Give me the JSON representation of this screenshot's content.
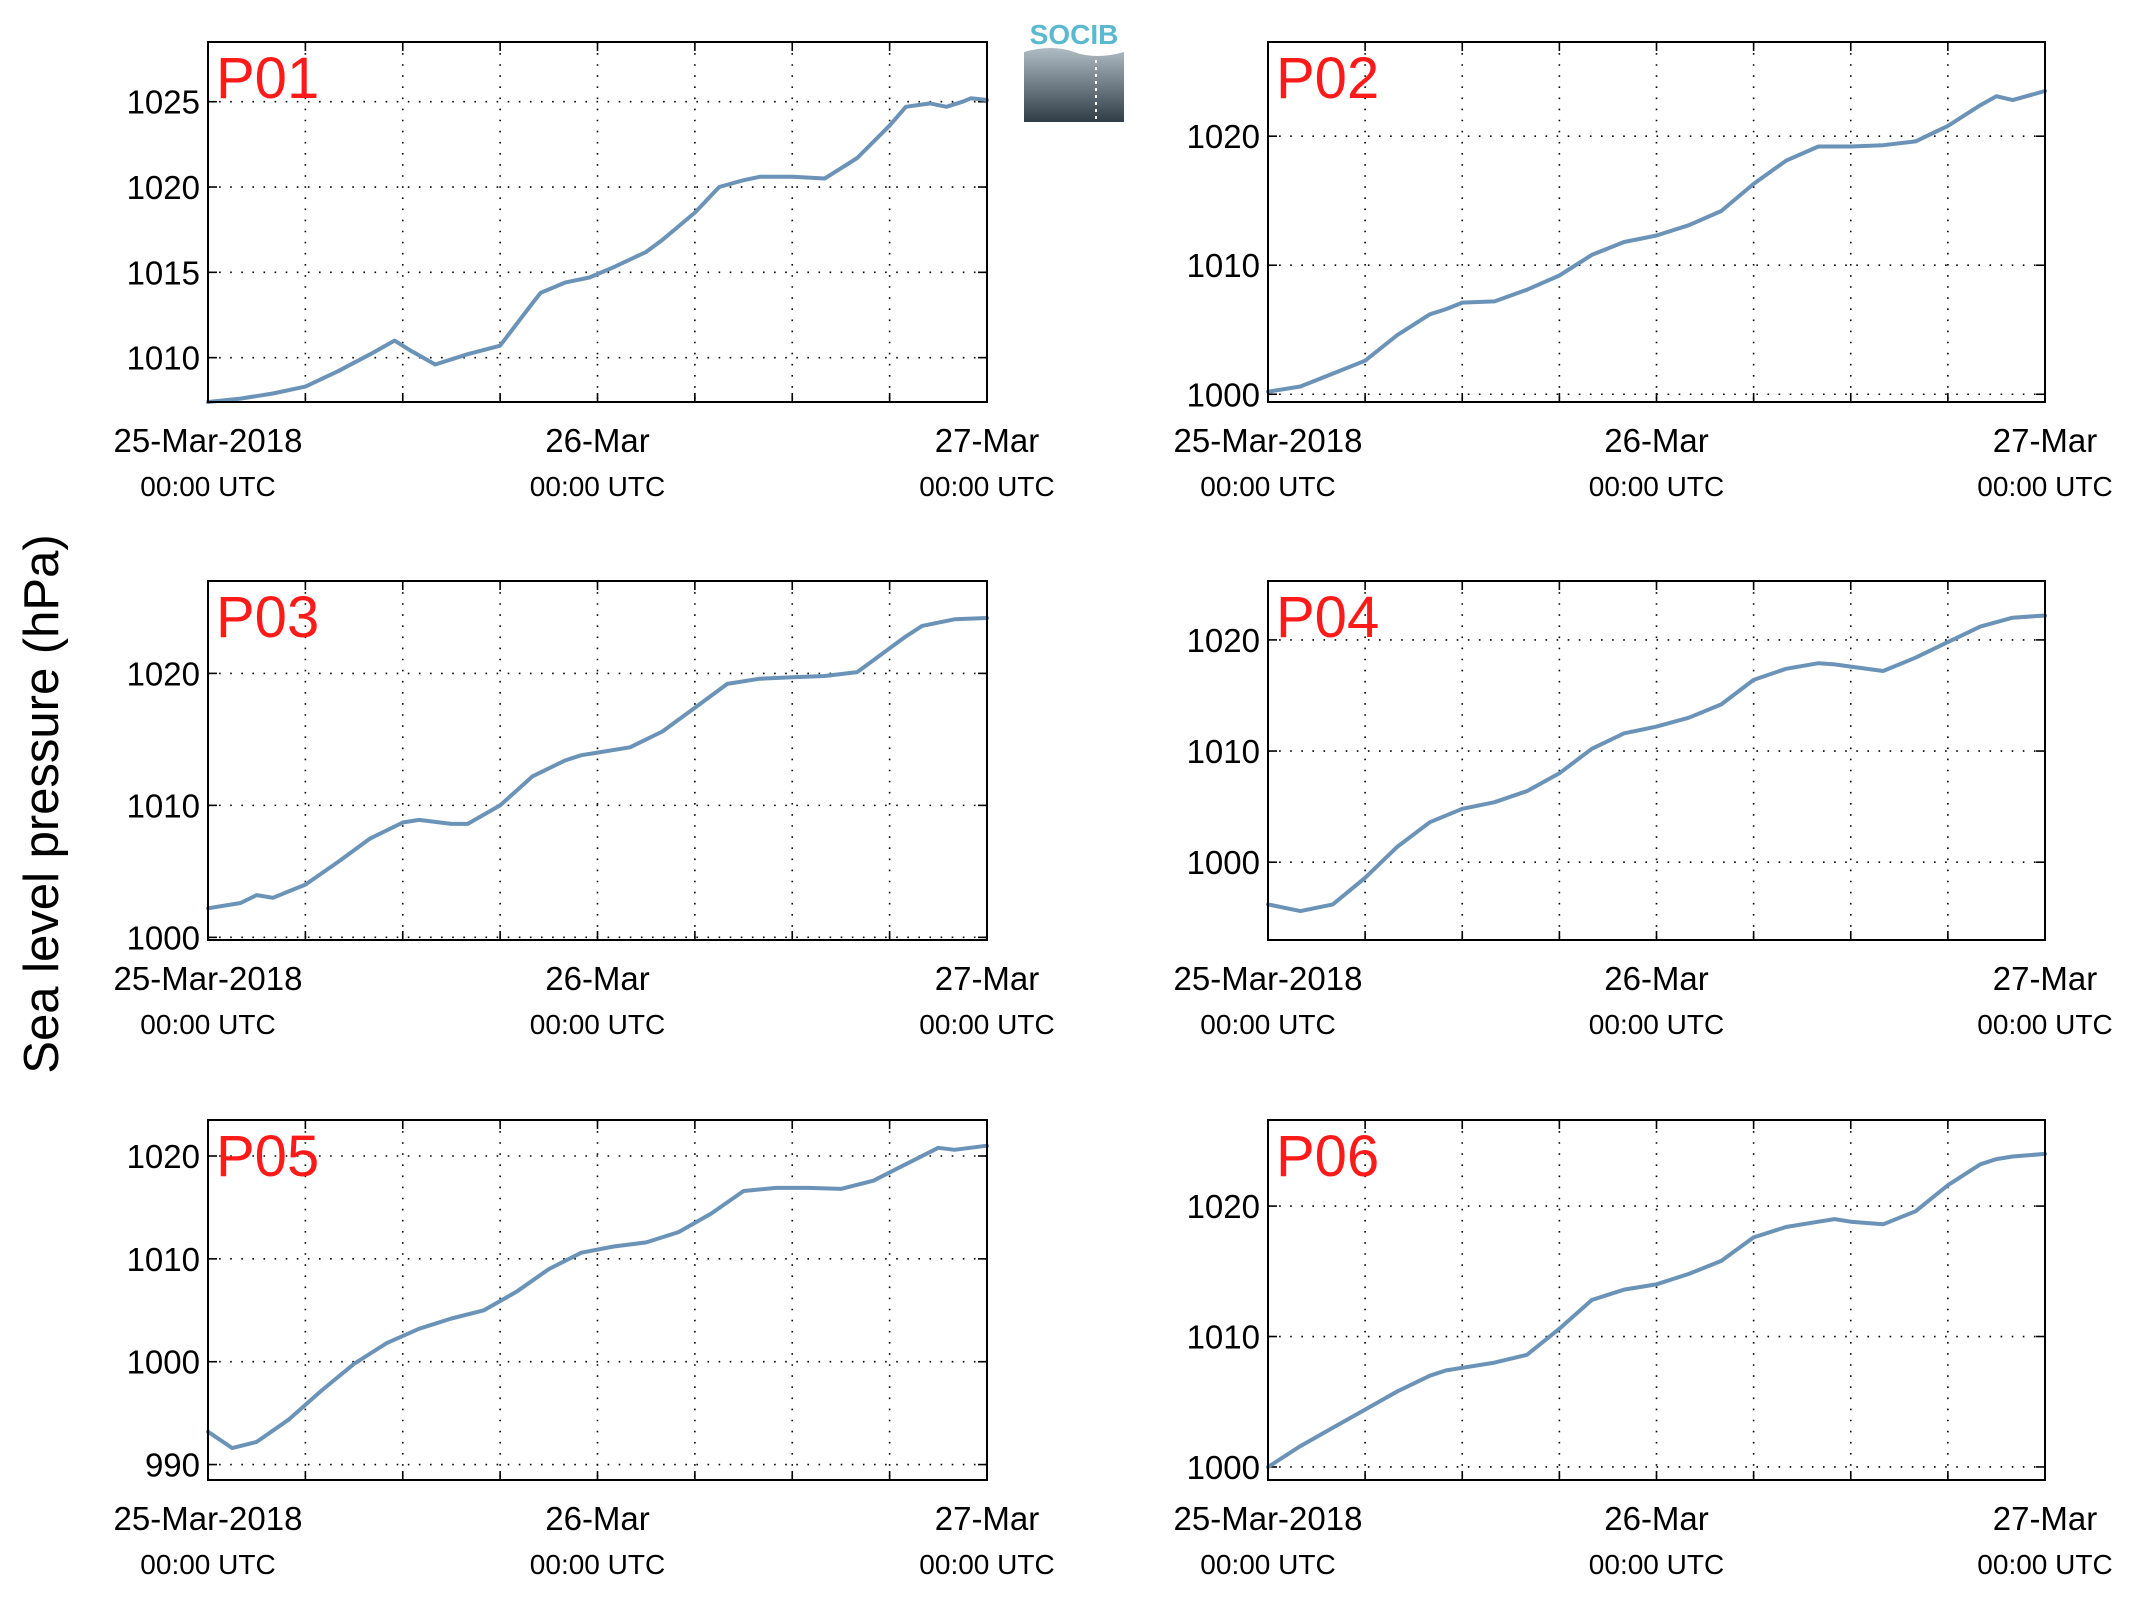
{
  "figure": {
    "ylabel": "Sea level pressure (hPa)",
    "logo_text": "SOCIB",
    "line_color": "#6b93b7",
    "panel_label_color": "#ff1a1a",
    "grid": true,
    "x_ticks": [
      {
        "x": 0,
        "line1": "25-Mar-2018",
        "line2": "00:00 UTC"
      },
      {
        "x": 24,
        "line1": "26-Mar",
        "line2": "00:00 UTC"
      },
      {
        "x": 48,
        "line1": "27-Mar",
        "line2": "00:00 UTC"
      }
    ]
  },
  "chart_data": [
    {
      "type": "line",
      "title": "P01",
      "xlabel": "",
      "ylabel": "Sea level pressure (hPa)",
      "x_unit": "hours since 25-Mar-2018 00:00 UTC",
      "xlim": [
        0,
        48
      ],
      "ylim": [
        1007.4,
        1028.5
      ],
      "yticks": [
        1010,
        1015,
        1020,
        1025
      ],
      "series": [
        {
          "x": [
            0,
            2,
            4,
            6,
            8,
            10,
            11.5,
            12.5,
            14,
            16,
            18,
            20,
            20.5,
            22,
            23.5,
            25,
            27,
            28,
            30,
            31.5,
            33,
            34,
            36,
            38,
            39,
            40,
            42,
            43,
            44.5,
            45.5,
            46.5,
            47,
            48
          ],
          "y": [
            1007.4,
            1007.6,
            1007.9,
            1008.3,
            1009.2,
            1010.2,
            1011.0,
            1010.4,
            1009.6,
            1010.2,
            1010.7,
            1013.2,
            1013.8,
            1014.4,
            1014.7,
            1015.3,
            1016.2,
            1016.9,
            1018.5,
            1020.0,
            1020.4,
            1020.6,
            1020.6,
            1020.5,
            1021.1,
            1021.7,
            1023.6,
            1024.7,
            1024.9,
            1024.7,
            1025.0,
            1025.2,
            1025.1
          ]
        }
      ]
    },
    {
      "type": "line",
      "title": "P02",
      "xlabel": "",
      "ylabel": "Sea level pressure (hPa)",
      "x_unit": "hours since 25-Mar-2018 00:00 UTC",
      "xlim": [
        0,
        48
      ],
      "ylim": [
        999.4,
        1027.3
      ],
      "yticks": [
        1000,
        1010,
        1020
      ],
      "series": [
        {
          "x": [
            0,
            2,
            4,
            6,
            8,
            10,
            11,
            12,
            14,
            16,
            18,
            20,
            22,
            24,
            26,
            28,
            30,
            32,
            34,
            36,
            38,
            40,
            42,
            44,
            45,
            46,
            48
          ],
          "y": [
            1000.2,
            1000.6,
            1001.6,
            1002.6,
            1004.6,
            1006.2,
            1006.6,
            1007.1,
            1007.2,
            1008.1,
            1009.2,
            1010.8,
            1011.8,
            1012.3,
            1013.1,
            1014.2,
            1016.3,
            1018.1,
            1019.2,
            1019.2,
            1019.3,
            1019.6,
            1020.8,
            1022.4,
            1023.1,
            1022.8,
            1023.5
          ]
        }
      ]
    },
    {
      "type": "line",
      "title": "P03",
      "xlabel": "",
      "ylabel": "Sea level pressure (hPa)",
      "x_unit": "hours since 25-Mar-2018 00:00 UTC",
      "xlim": [
        0,
        48
      ],
      "ylim": [
        999.8,
        1027.0
      ],
      "yticks": [
        1000,
        1010,
        1020
      ],
      "series": [
        {
          "x": [
            0,
            2,
            3,
            4,
            6,
            8,
            10,
            12,
            13,
            15,
            16,
            18,
            20,
            22,
            23,
            24,
            26,
            28,
            30,
            32,
            34,
            36,
            38,
            40,
            42,
            43,
            44,
            46,
            48
          ],
          "y": [
            1002.2,
            1002.6,
            1003.2,
            1003.0,
            1004.0,
            1005.7,
            1007.5,
            1008.7,
            1008.9,
            1008.6,
            1008.6,
            1010.0,
            1012.2,
            1013.4,
            1013.8,
            1014.0,
            1014.4,
            1015.6,
            1017.4,
            1019.2,
            1019.6,
            1019.7,
            1019.8,
            1020.1,
            1021.9,
            1022.8,
            1023.6,
            1024.1,
            1024.2
          ]
        }
      ]
    },
    {
      "type": "line",
      "title": "P04",
      "xlabel": "",
      "ylabel": "Sea level pressure (hPa)",
      "x_unit": "hours since 25-Mar-2018 00:00 UTC",
      "xlim": [
        0,
        48
      ],
      "ylim": [
        993.0,
        1025.3
      ],
      "yticks": [
        1000,
        1010,
        1020
      ],
      "series": [
        {
          "x": [
            0,
            2,
            4,
            6,
            8,
            10,
            12,
            14,
            16,
            18,
            20,
            22,
            24,
            26,
            28,
            30,
            32,
            34,
            35,
            36,
            38,
            40,
            42,
            44,
            46,
            48
          ],
          "y": [
            996.2,
            995.6,
            996.2,
            998.6,
            1001.4,
            1003.6,
            1004.8,
            1005.4,
            1006.4,
            1008.0,
            1010.2,
            1011.6,
            1012.2,
            1013.0,
            1014.2,
            1016.4,
            1017.4,
            1017.9,
            1017.8,
            1017.6,
            1017.2,
            1018.4,
            1019.8,
            1021.2,
            1022.0,
            1022.2
          ]
        }
      ]
    },
    {
      "type": "line",
      "title": "P05",
      "xlabel": "",
      "ylabel": "Sea level pressure (hPa)",
      "x_unit": "hours since 25-Mar-2018 00:00 UTC",
      "xlim": [
        0,
        48
      ],
      "ylim": [
        988.5,
        1023.5
      ],
      "yticks": [
        990,
        1000,
        1010,
        1020
      ],
      "series": [
        {
          "x": [
            0,
            1.5,
            3,
            5,
            7,
            9,
            11,
            13,
            15,
            17,
            19,
            21,
            23,
            25,
            27,
            29,
            31,
            33,
            35,
            37,
            39,
            41,
            43,
            45,
            46,
            48
          ],
          "y": [
            993.2,
            991.6,
            992.2,
            994.4,
            997.2,
            999.8,
            1001.8,
            1003.2,
            1004.2,
            1005.0,
            1006.8,
            1009.0,
            1010.6,
            1011.2,
            1011.6,
            1012.6,
            1014.4,
            1016.6,
            1016.9,
            1016.9,
            1016.8,
            1017.6,
            1019.2,
            1020.8,
            1020.6,
            1021.0
          ]
        }
      ]
    },
    {
      "type": "line",
      "title": "P06",
      "xlabel": "",
      "ylabel": "Sea level pressure (hPa)",
      "x_unit": "hours since 25-Mar-2018 00:00 UTC",
      "xlim": [
        0,
        48
      ],
      "ylim": [
        999.0,
        1026.6
      ],
      "yticks": [
        1000,
        1010,
        1020
      ],
      "series": [
        {
          "x": [
            0,
            2,
            4,
            6,
            8,
            10,
            11,
            12,
            14,
            16,
            18,
            20,
            21,
            22,
            24,
            26,
            28,
            30,
            32,
            34,
            35,
            36,
            38,
            40,
            42,
            44,
            45,
            46,
            48
          ],
          "y": [
            1000.0,
            1001.6,
            1003.0,
            1004.4,
            1005.8,
            1007.0,
            1007.4,
            1007.6,
            1008.0,
            1008.6,
            1010.6,
            1012.8,
            1013.2,
            1013.6,
            1014.0,
            1014.8,
            1015.8,
            1017.6,
            1018.4,
            1018.8,
            1019.0,
            1018.8,
            1018.6,
            1019.6,
            1021.6,
            1023.2,
            1023.6,
            1023.8,
            1024.0
          ]
        }
      ]
    }
  ]
}
